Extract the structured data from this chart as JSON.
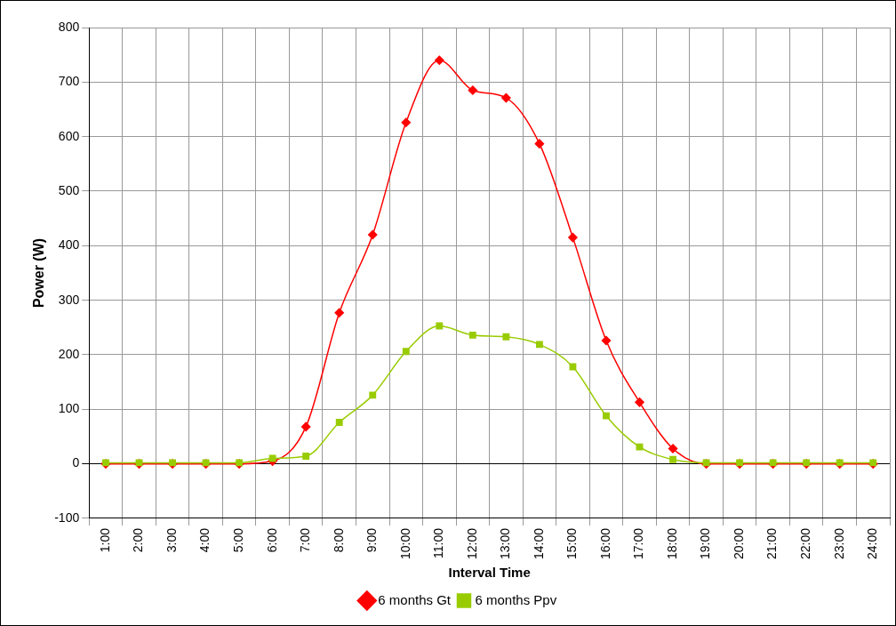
{
  "chart_data": {
    "type": "line",
    "xlabel": "Interval Time",
    "ylabel": "Power (W)",
    "categories": [
      "1:00",
      "2:00",
      "3:00",
      "4:00",
      "5:00",
      "6:00",
      "7:00",
      "8:00",
      "9:00",
      "10:00",
      "11:00",
      "12:00",
      "13:00",
      "14:00",
      "15:00",
      "16:00",
      "17:00",
      "18:00",
      "19:00",
      "20:00",
      "21:00",
      "22:00",
      "23:00",
      "24:00"
    ],
    "series": [
      {
        "name": "6 months Gt",
        "color": "#ff0000",
        "marker": "diamond",
        "values": [
          0,
          0,
          0,
          0,
          0,
          5,
          68,
          277,
          420,
          626,
          740,
          685,
          671,
          587,
          415,
          226,
          113,
          28,
          0,
          0,
          0,
          0,
          0,
          0
        ]
      },
      {
        "name": "6 months Ppv",
        "color": "#99cc00",
        "marker": "square",
        "values": [
          2,
          2,
          2,
          2,
          2,
          10,
          14,
          76,
          126,
          206,
          253,
          236,
          233,
          219,
          178,
          88,
          31,
          8,
          2,
          2,
          2,
          2,
          2,
          2
        ]
      }
    ],
    "ylim": [
      -100,
      800
    ],
    "yticks": [
      -100,
      0,
      100,
      200,
      300,
      400,
      500,
      600,
      700,
      800
    ],
    "grid": true,
    "legend": "bottom"
  }
}
